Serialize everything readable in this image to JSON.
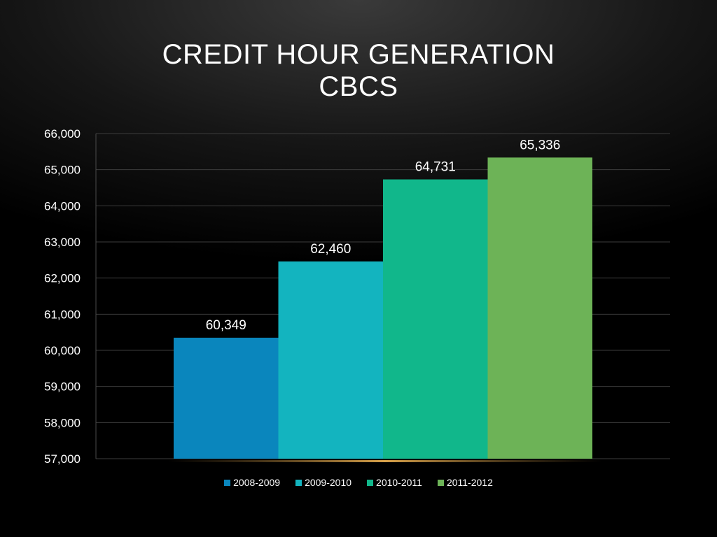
{
  "slide": {
    "title_line1": "CREDIT HOUR GENERATION",
    "title_line2": "CBCS"
  },
  "chart_data": {
    "type": "bar",
    "categories": [
      ""
    ],
    "series": [
      {
        "name": "2008-2009",
        "values": [
          60349
        ],
        "label": "60,349",
        "color": "#0a86bd"
      },
      {
        "name": "2009-2010",
        "values": [
          62460
        ],
        "label": "62,460",
        "color": "#13b4bf"
      },
      {
        "name": "2010-2011",
        "values": [
          64731
        ],
        "label": "64,731",
        "color": "#11b78b"
      },
      {
        "name": "2011-2012",
        "values": [
          65336
        ],
        "label": "65,336",
        "color": "#6db357"
      }
    ],
    "ylim": [
      57000,
      66000
    ],
    "yticks": [
      57000,
      58000,
      59000,
      60000,
      61000,
      62000,
      63000,
      64000,
      65000,
      66000
    ],
    "ytick_labels": [
      "57,000",
      "58,000",
      "59,000",
      "60,000",
      "61,000",
      "62,000",
      "63,000",
      "64,000",
      "65,000",
      "66,000"
    ],
    "grid": true,
    "legend_position": "bottom",
    "title": "CREDIT HOUR GENERATION CBCS",
    "xlabel": "",
    "ylabel": ""
  }
}
